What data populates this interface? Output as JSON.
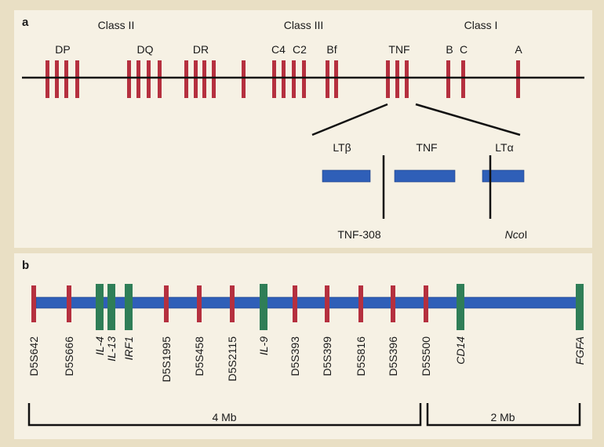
{
  "panel_a": {
    "letter": "a",
    "classes": [
      "Class II",
      "Class III",
      "Class I"
    ],
    "gene_groups": [
      "DP",
      "DQ",
      "DR",
      "C4",
      "C2",
      "Bf",
      "TNF",
      "B",
      "C",
      "A"
    ],
    "expanded_genes": [
      "LTβ",
      "TNF",
      "LTα"
    ],
    "markers": [
      {
        "label": "TNF-308",
        "italic_part": ""
      },
      {
        "label": "I",
        "italic_part": "Nco"
      }
    ]
  },
  "panel_b": {
    "letter": "b",
    "loci": [
      {
        "name": "D5S642",
        "type": "marker"
      },
      {
        "name": "D5S666",
        "type": "marker"
      },
      {
        "name": "IL-4",
        "type": "gene"
      },
      {
        "name": "IL-13",
        "type": "gene"
      },
      {
        "name": "IRF1",
        "type": "gene"
      },
      {
        "name": "D5S1995",
        "type": "marker"
      },
      {
        "name": "D5S458",
        "type": "marker"
      },
      {
        "name": "D5S2115",
        "type": "marker"
      },
      {
        "name": "IL-9",
        "type": "gene"
      },
      {
        "name": "D5S393",
        "type": "marker"
      },
      {
        "name": "D5S399",
        "type": "marker"
      },
      {
        "name": "D5S816",
        "type": "marker"
      },
      {
        "name": "D5S396",
        "type": "marker"
      },
      {
        "name": "D5S500",
        "type": "marker"
      },
      {
        "name": "CD14",
        "type": "gene"
      },
      {
        "name": "FGFA",
        "type": "gene"
      }
    ],
    "scale": [
      "4 Mb",
      "2 Mb"
    ]
  },
  "colors": {
    "red_bar": "#b5303f",
    "green_bar": "#2f7e57",
    "blue_bar": "#2f5fb8",
    "line": "#111111",
    "frame": "#e9dfc4",
    "panel": "#f6f1e4"
  }
}
